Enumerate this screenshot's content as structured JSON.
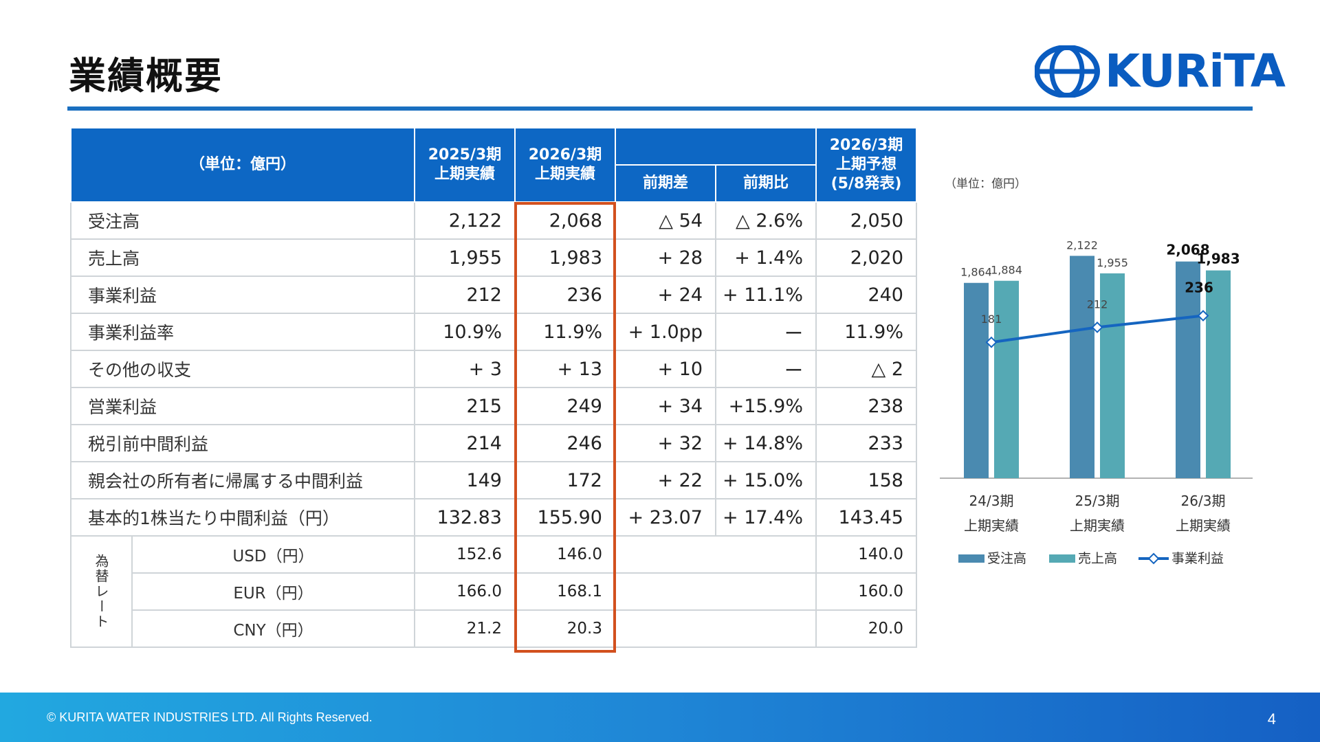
{
  "title": "業績概要",
  "logo_text": "KURiTA",
  "table": {
    "unit_label": "（単位：億円）",
    "col_fy25_line1": "2025/3期",
    "col_fy25_line2": "上期実績",
    "col_fy26_line1": "2026/3期",
    "col_fy26_line2": "上期実績",
    "col_diff": "前期差",
    "col_ratio": "前期比",
    "col_fc_line1": "2026/3期",
    "col_fc_line2": "上期予想",
    "col_fc_line3": "(5/8発表)",
    "rows": [
      {
        "label": "受注高",
        "fy25": "2,122",
        "fy26": "2,068",
        "diff": "△ 54",
        "ratio": "△ 2.6%",
        "forecast": "2,050"
      },
      {
        "label": "売上高",
        "fy25": "1,955",
        "fy26": "1,983",
        "diff": "+ 28",
        "ratio": "+ 1.4%",
        "forecast": "2,020"
      },
      {
        "label": "事業利益",
        "fy25": "212",
        "fy26": "236",
        "diff": "+ 24",
        "ratio": "+ 11.1%",
        "forecast": "240"
      },
      {
        "label": "事業利益率",
        "fy25": "10.9%",
        "fy26": "11.9%",
        "diff": "+ 1.0pp",
        "ratio": "ー",
        "forecast": "11.9%"
      },
      {
        "label": "その他の収支",
        "fy25": "+ 3",
        "fy26": "+ 13",
        "diff": "+ 10",
        "ratio": "ー",
        "forecast": "△ 2"
      },
      {
        "label": "営業利益",
        "fy25": "215",
        "fy26": "249",
        "diff": "+ 34",
        "ratio": "+15.9%",
        "forecast": "238"
      },
      {
        "label": "税引前中間利益",
        "fy25": "214",
        "fy26": "246",
        "diff": "+ 32",
        "ratio": "+ 14.8%",
        "forecast": "233"
      },
      {
        "label": "親会社の所有者に帰属する中間利益",
        "fy25": "149",
        "fy26": "172",
        "diff": "+ 22",
        "ratio": "+ 15.0%",
        "forecast": "158"
      },
      {
        "label": "基本的1株当たり中間利益（円）",
        "fy25": "132.83",
        "fy26": "155.90",
        "diff": "+ 23.07",
        "ratio": "+ 17.4%",
        "forecast": "143.45"
      }
    ],
    "fx_label": "為替レート",
    "fx_rows": [
      {
        "label": "USD（円）",
        "fy25": "152.6",
        "fy26": "146.0",
        "forecast": "140.0"
      },
      {
        "label": "EUR（円）",
        "fy25": "166.0",
        "fy26": "168.1",
        "forecast": "160.0"
      },
      {
        "label": "CNY（円）",
        "fy25": "21.2",
        "fy26": "20.3",
        "forecast": "20.0"
      }
    ]
  },
  "chart_data": {
    "type": "bar",
    "unit_label": "（単位：億円）",
    "categories_line1": [
      "24/3期",
      "25/3期",
      "26/3期"
    ],
    "categories_line2": [
      "上期実績",
      "上期実績",
      "上期実績"
    ],
    "series": [
      {
        "name": "受注高",
        "kind": "bar",
        "color": "#4a8ab0",
        "values": [
          1864,
          2122,
          2068
        ],
        "labels": [
          "1,864",
          "2,122",
          "2,068"
        ]
      },
      {
        "name": "売上高",
        "kind": "bar",
        "color": "#55a9b4",
        "values": [
          1884,
          1955,
          1983
        ],
        "labels": [
          "1,884",
          "1,955",
          "1,983"
        ]
      },
      {
        "name": "事業利益",
        "kind": "line",
        "color": "#1565c0",
        "values": [
          181,
          212,
          236
        ],
        "labels": [
          "181",
          "212",
          "236"
        ]
      }
    ],
    "bar_ylim": [
      0,
      2400
    ],
    "line_ylim": [
      -100,
      420
    ]
  },
  "footer": {
    "copyright": "© KURITA WATER INDUSTRIES LTD. All Rights Reserved.",
    "page_number": "4"
  }
}
